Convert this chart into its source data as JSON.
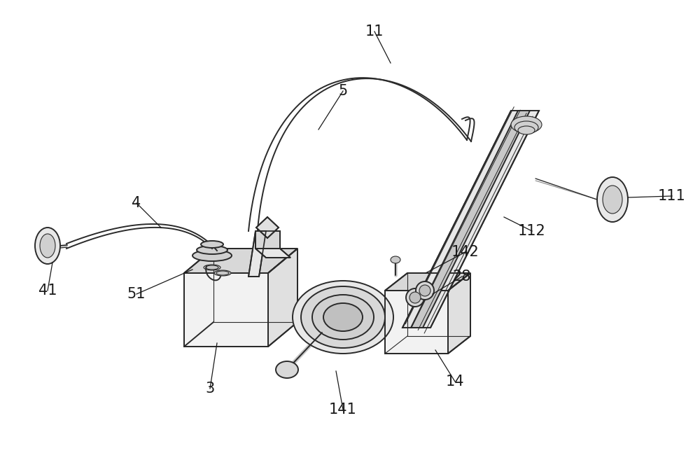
{
  "bg_color": "#ffffff",
  "line_color": "#2a2a2a",
  "figsize": [
    10.0,
    6.57
  ],
  "dpi": 100,
  "lw": 1.4,
  "tlw": 0.8
}
